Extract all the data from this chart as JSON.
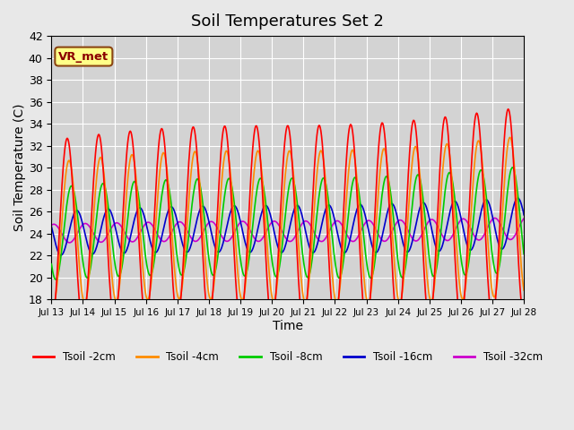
{
  "title": "Soil Temperatures Set 2",
  "xlabel": "Time",
  "ylabel": "Soil Temperature (C)",
  "ylim": [
    18,
    42
  ],
  "n_days": 15,
  "xtick_labels": [
    "Jul 13",
    "Jul 14",
    "Jul 15",
    "Jul 16",
    "Jul 17",
    "Jul 18",
    "Jul 19",
    "Jul 20",
    "Jul 21",
    "Jul 22",
    "Jul 23",
    "Jul 24",
    "Jul 25",
    "Jul 26",
    "Jul 27",
    "Jul 28"
  ],
  "annotation_text": "VR_met",
  "annotation_box_facecolor": "#FFFF88",
  "annotation_box_edgecolor": "#8B4513",
  "legend_labels": [
    "Tsoil -2cm",
    "Tsoil -4cm",
    "Tsoil -8cm",
    "Tsoil -16cm",
    "Tsoil -32cm"
  ],
  "line_colors": [
    "#FF0000",
    "#FF8C00",
    "#00CC00",
    "#0000CC",
    "#CC00CC"
  ],
  "bg_color": "#E8E8E8",
  "plot_bg_color": "#D3D3D3",
  "grid_color": "#FFFFFF",
  "title_fontsize": 13,
  "axis_label_fontsize": 10
}
